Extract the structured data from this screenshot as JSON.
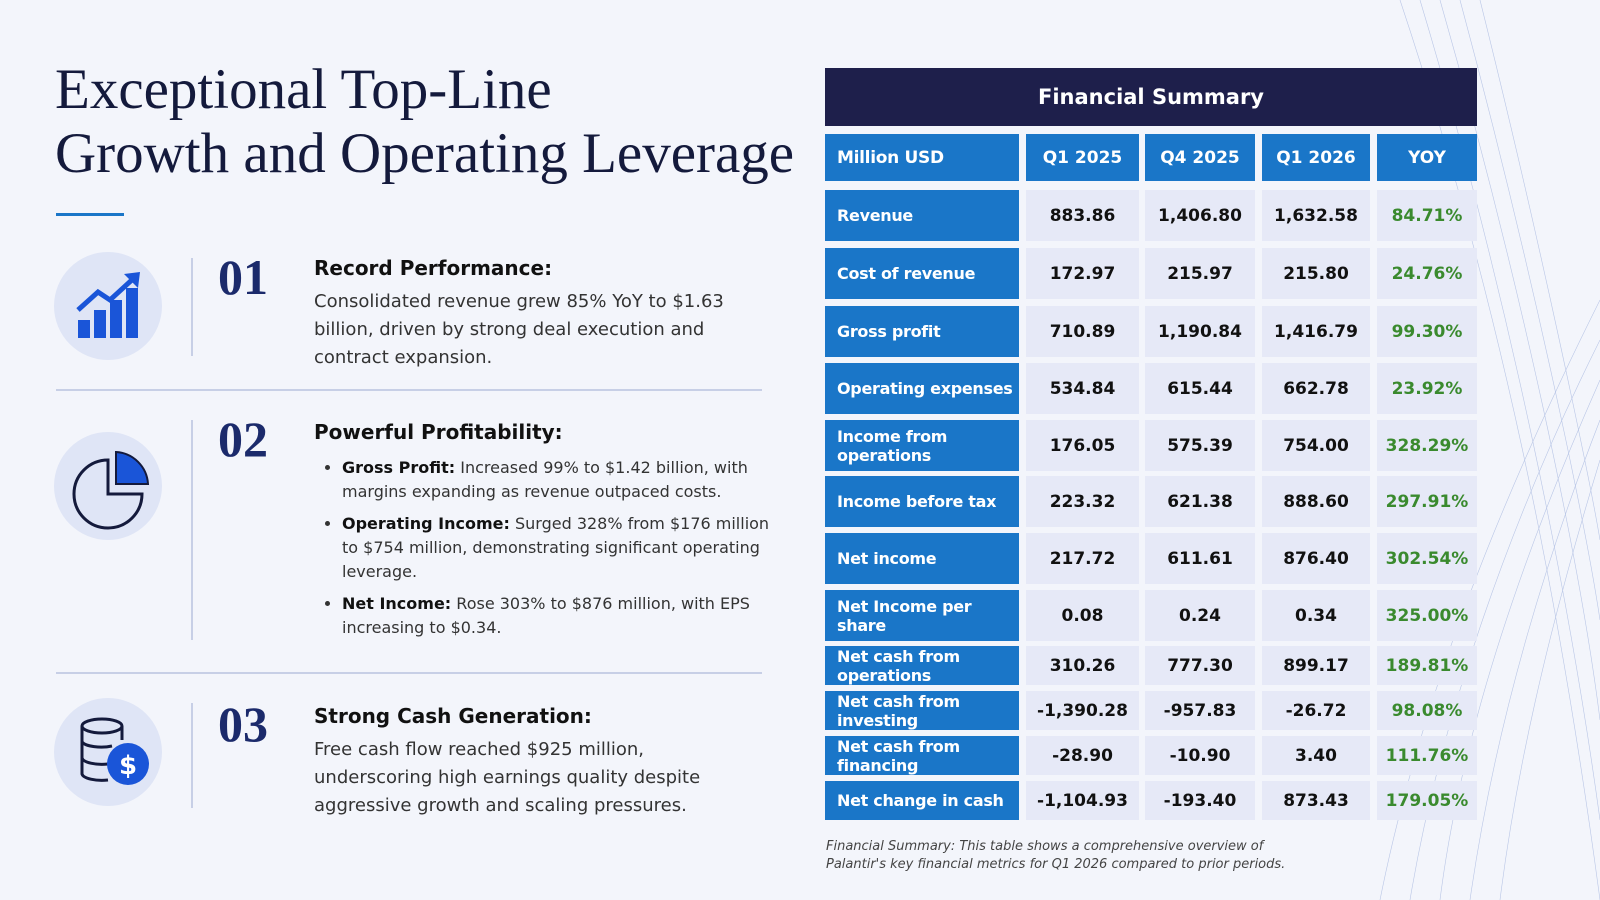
{
  "title": [
    "Exceptional Top-Line",
    "Growth and Operating Leverage"
  ],
  "sections": [
    {
      "number": "01",
      "heading": "Record Performance:",
      "body": "Consolidated revenue grew 85% YoY to $1.63 billion, driven by strong deal execution and contract expansion."
    },
    {
      "number": "02",
      "heading": "Powerful Profitability:",
      "bullets": [
        {
          "label": "Gross Profit:",
          "text": "Increased 99% to $1.42 billion, with margins expanding as revenue outpaced costs."
        },
        {
          "label": "Operating Income:",
          "text": "Surged 328% from $176 million to $754 million, demonstrating significant operating leverage."
        },
        {
          "label": "Net Income:",
          "text": "Rose 303% to $876 million, with EPS increasing to $0.34."
        }
      ]
    },
    {
      "number": "03",
      "heading": "Strong Cash Generation:",
      "body": "Free cash flow reached $925 million, underscoring high earnings quality despite aggressive growth and scaling pressures."
    }
  ],
  "table": {
    "title": "Financial Summary",
    "header": [
      "Million USD",
      "Q1 2025",
      "Q4 2025",
      "Q1 2026",
      "YOY"
    ],
    "rows": [
      [
        "Revenue",
        "883.86",
        "1,406.80",
        "1,632.58",
        "84.71%"
      ],
      [
        "Cost of revenue",
        "172.97",
        "215.97",
        "215.80",
        "24.76%"
      ],
      [
        "Gross profit",
        "710.89",
        "1,190.84",
        "1,416.79",
        "99.30%"
      ],
      [
        "Operating expenses",
        "534.84",
        "615.44",
        "662.78",
        "23.92%"
      ],
      [
        "Income from operations",
        "176.05",
        "575.39",
        "754.00",
        "328.29%"
      ],
      [
        "Income before tax",
        "223.32",
        "621.38",
        "888.60",
        "297.91%"
      ],
      [
        "Net income",
        "217.72",
        "611.61",
        "876.40",
        "302.54%"
      ],
      [
        "Net Income per share",
        "0.08",
        "0.24",
        "0.34",
        "325.00%"
      ],
      [
        "Net cash from operations",
        "310.26",
        "777.30",
        "899.17",
        "189.81%"
      ],
      [
        "Net cash from investing",
        "-1,390.28",
        "-957.83",
        "-26.72",
        "98.08%"
      ],
      [
        "Net cash from financing",
        "-28.90",
        "-10.90",
        "3.40",
        "111.76%"
      ],
      [
        "Net change in cash",
        "-1,104.93",
        "-193.40",
        "873.43",
        "179.05%"
      ]
    ]
  },
  "caption": "Financial Summary: This table shows a comprehensive overview of Palantir's key financial metrics for Q1 2026 compared to prior periods."
}
